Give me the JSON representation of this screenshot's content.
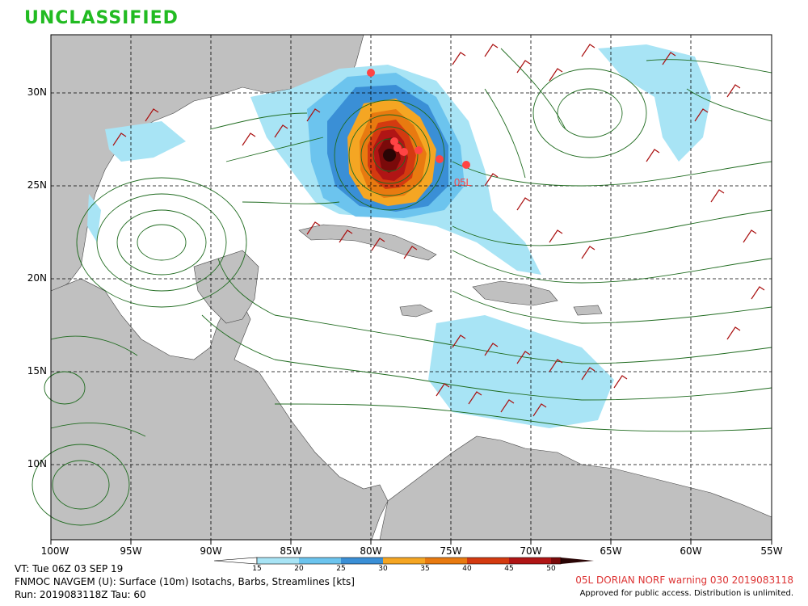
{
  "classification": {
    "text": "UNCLASSIFIED",
    "color": "#22bb22"
  },
  "map": {
    "storm_label": "05L",
    "storm_color": "#ff4444",
    "land_color": "#c0c0c0",
    "water_color": "#ffffff",
    "streamline_color": "#1f6b1f",
    "barb_color": "#aa1111",
    "lat_labels": [
      "30N",
      "25N",
      "20N",
      "15N",
      "10N"
    ],
    "lon_labels": [
      "100W",
      "95W",
      "90W",
      "85W",
      "80W",
      "75W",
      "70W",
      "65W",
      "60W",
      "55W"
    ],
    "track_points_count": 8
  },
  "colorbar": {
    "labels": [
      "15",
      "20",
      "25",
      "30",
      "35",
      "40",
      "45",
      "50"
    ],
    "colors": [
      "#a8e4f5",
      "#6cc4ee",
      "#3a8fd6",
      "#f5a623",
      "#e87a10",
      "#d43a10",
      "#b01515",
      "#7a0a0a"
    ]
  },
  "footer": {
    "vt": "VT: Tue 06Z 03 SEP 19",
    "product": "FNMOC NAVGEM (U): Surface (10m) Isotachs, Barbs, Streamlines [kts]",
    "run": "Run: 2019083118Z Tau: 60",
    "warning": "05L DORIAN NORF warning 030 2019083118",
    "warning_color": "#dd3333",
    "approved": "Approved for public access. Distribution is unlimited."
  }
}
